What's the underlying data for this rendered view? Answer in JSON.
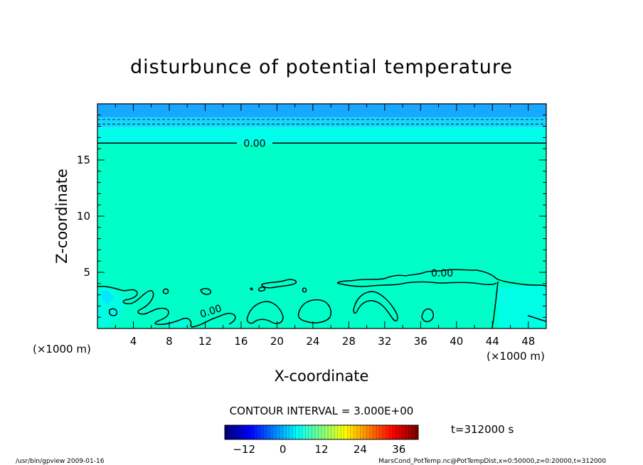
{
  "chart_data": {
    "type": "heatmap",
    "title": "disturbunce of potential temperature",
    "xlabel": "X-coordinate",
    "ylabel": "Z-coordinate",
    "x_unit_left": "(×1000 m)",
    "x_unit_right": "(×1000 m)",
    "xlim": [
      0,
      50
    ],
    "ylim": [
      0,
      20
    ],
    "x_ticks": [
      4,
      8,
      12,
      16,
      20,
      24,
      28,
      32,
      36,
      40,
      44,
      48
    ],
    "y_ticks": [
      5,
      10,
      15
    ],
    "contour_label": "0.00",
    "contour_interval_text": "CONTOUR INTERVAL = 3.000E+00",
    "time_label": "t=312000 s",
    "colorbar": {
      "min": -18,
      "max": 42,
      "ticks": [
        -12,
        0,
        12,
        24,
        36
      ]
    },
    "bands": [
      {
        "z_from": 18.8,
        "z_to": 20.0,
        "color": "#18a8ff"
      },
      {
        "z_from": 17.9,
        "z_to": 18.8,
        "color": "#16d8ff"
      },
      {
        "z_from": 16.5,
        "z_to": 17.9,
        "color": "#00ffea"
      },
      {
        "z_from": 0.0,
        "z_to": 16.5,
        "color": "#00ffc8"
      }
    ],
    "level_lines": [
      {
        "z": 16.5,
        "style": "solid",
        "labeled": true
      },
      {
        "z": 18.6,
        "style": "dashed",
        "labeled": false
      },
      {
        "z": 18.2,
        "style": "dashed",
        "labeled": false
      }
    ]
  },
  "footer": {
    "left": "/usr/bin/gpview   2009-01-16",
    "right": "MarsCond_PotTemp.nc@PotTempDist,x=0:50000,z=0:20000,t=312000"
  }
}
